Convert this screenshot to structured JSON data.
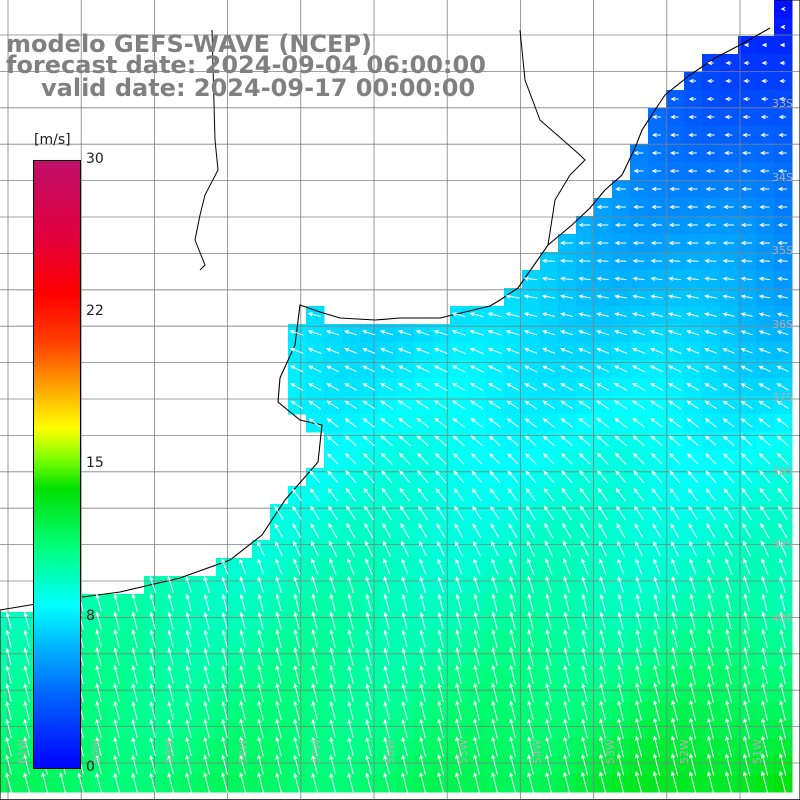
{
  "title": {
    "line1": "modelo GEFS-WAVE (NCEP)",
    "line2": "forecast date: 2024-09-04 06:00:00",
    "line3": "valid date: 2024-09-17 00:00:00"
  },
  "colorbar": {
    "unit": "[m/s]",
    "ticks": [
      {
        "value": 30,
        "label": "30"
      },
      {
        "value": 22,
        "label": "22"
      },
      {
        "value": 15,
        "label": "15"
      },
      {
        "value": 8,
        "label": "8"
      },
      {
        "value": 0,
        "label": "0"
      }
    ],
    "range": [
      0,
      30
    ]
  },
  "map": {
    "lat_labels": [
      "33S",
      "34S",
      "35S",
      "36S",
      "37S",
      "38S",
      "39S",
      "40S"
    ],
    "lon_labels": [
      "61W",
      "60W",
      "59W",
      "58W",
      "57W",
      "56W",
      "55W",
      "54W",
      "53W",
      "52W",
      "51W"
    ],
    "grid_color": "#808080",
    "coast_color": "#000000",
    "vector_color": "#ffffff"
  }
}
